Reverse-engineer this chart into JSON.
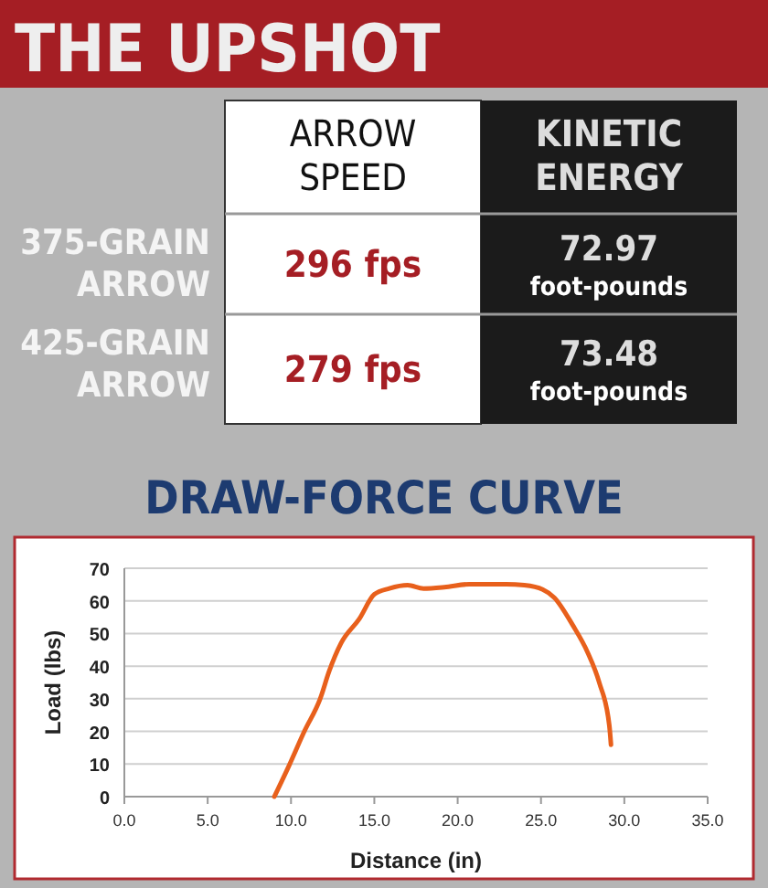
{
  "chart_data": [
    {
      "type": "other",
      "title": "THE UPSHOT",
      "categories": [
        "ARROW SPEED",
        "KINETIC ENERGY"
      ],
      "y_categories": [
        "375-GRAIN ARROW",
        "425-GRAIN ARROW"
      ],
      "cell_labels": [
        [
          "296 fps",
          "72.97 foot-pounds"
        ],
        [
          "279 fps",
          "73.48 foot-pounds"
        ]
      ]
    },
    {
      "type": "line",
      "title": "DRAW-FORCE CURVE",
      "xlabel": "Distance (in)",
      "ylabel": "Load (lbs)",
      "x": [
        9.0,
        9.9,
        10.8,
        11.75,
        12.3,
        13.0,
        14.1,
        15.0,
        15.9,
        17.0,
        17.95,
        19.2,
        20.7,
        22.9,
        24.0,
        25.1,
        25.8,
        26.9,
        27.8,
        28.5,
        29.1,
        29.2
      ],
      "series": [
        {
          "color": "#e8601c",
          "values": [
            0,
            9.7,
            20,
            30,
            38.6,
            47,
            54.5,
            62,
            63.8,
            64.8,
            63.8,
            64.2,
            65.1,
            65.1,
            64.8,
            63.5,
            61,
            52.6,
            44.2,
            34.9,
            21.8,
            15.9
          ]
        }
      ],
      "xlim": [
        0,
        35
      ],
      "xticks": [
        {
          "value": 0,
          "label": "0.0"
        },
        {
          "value": 5,
          "label": "5.0"
        },
        {
          "value": 10,
          "label": "10.0"
        },
        {
          "value": 15,
          "label": "15.0"
        },
        {
          "value": 20,
          "label": "20.0"
        },
        {
          "value": 25,
          "label": "25.0"
        },
        {
          "value": 30,
          "label": "30.0"
        },
        {
          "value": 35,
          "label": "35.0"
        }
      ],
      "ylim": [
        0,
        70
      ],
      "yticks": [
        0,
        10,
        20,
        30,
        40,
        50,
        60,
        70
      ],
      "grid": "y",
      "marker": "none",
      "line_style": "solid"
    }
  ]
}
